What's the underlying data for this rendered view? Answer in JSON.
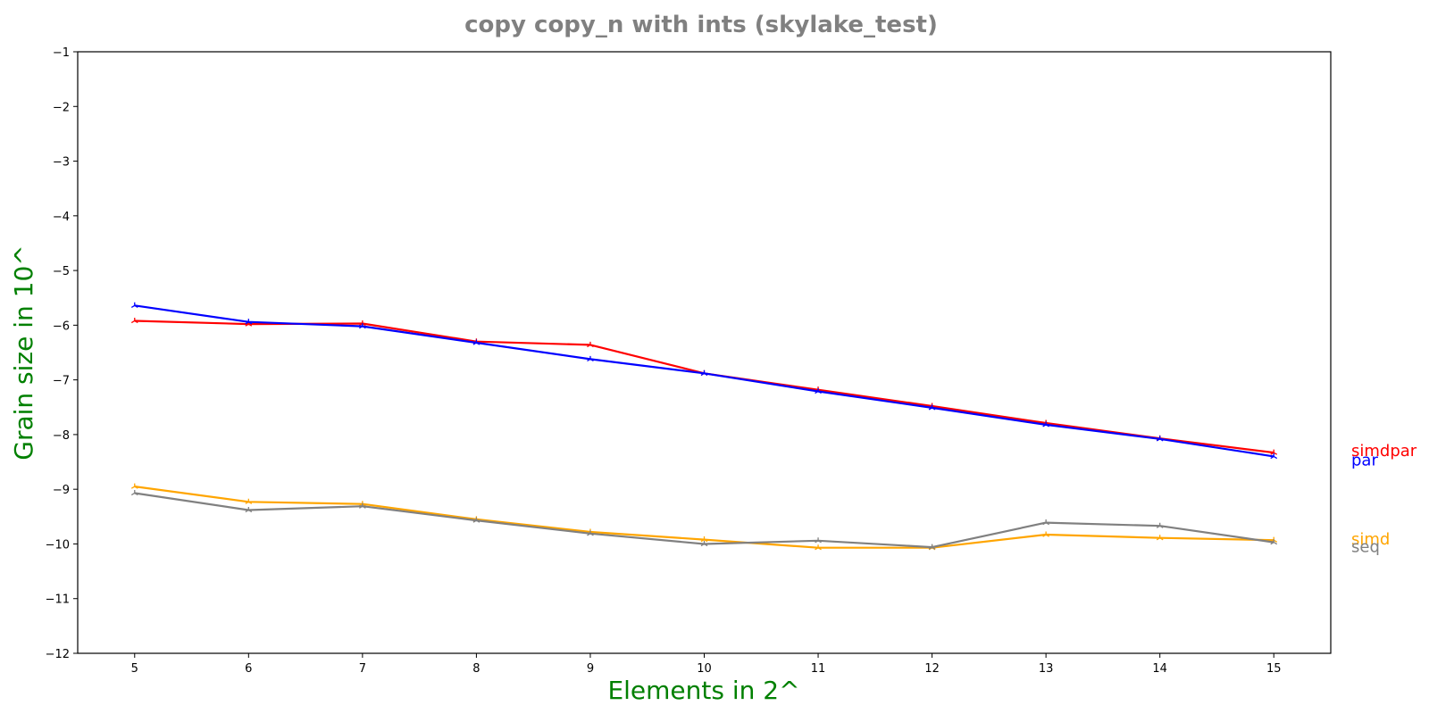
{
  "chart_data": {
    "type": "line",
    "title": "copy copy_n with ints  (skylake_test)",
    "xlabel": "Elements in 2^",
    "ylabel": "Grain size in 10^",
    "x": [
      5,
      6,
      7,
      8,
      9,
      10,
      11,
      12,
      13,
      14,
      15
    ],
    "xlim": [
      4.5,
      15.5
    ],
    "ylim": [
      -12,
      -1
    ],
    "yticks": [
      -12,
      -11,
      -10,
      -9,
      -8,
      -7,
      -6,
      -5,
      -4,
      -3,
      -2,
      -1
    ],
    "grid": false,
    "legend": "inline labels at right end of each series",
    "series": [
      {
        "name": "simdpar",
        "color": "#ff0000",
        "values": [
          -5.92,
          -5.98,
          -5.97,
          -6.3,
          -6.36,
          -6.88,
          -7.18,
          -7.48,
          -7.79,
          -8.07,
          -8.33
        ]
      },
      {
        "name": "par",
        "color": "#0000ff",
        "values": [
          -5.64,
          -5.94,
          -6.02,
          -6.32,
          -6.62,
          -6.88,
          -7.21,
          -7.51,
          -7.82,
          -8.08,
          -8.4
        ]
      },
      {
        "name": "simd",
        "color": "#ffa500",
        "values": [
          -8.95,
          -9.23,
          -9.27,
          -9.55,
          -9.78,
          -9.92,
          -10.07,
          -10.07,
          -9.83,
          -9.89,
          -9.93
        ]
      },
      {
        "name": "seq",
        "color": "#808080",
        "values": [
          -9.07,
          -9.38,
          -9.31,
          -9.57,
          -9.81,
          -10.0,
          -9.94,
          -10.06,
          -9.61,
          -9.67,
          -9.97
        ]
      }
    ]
  }
}
